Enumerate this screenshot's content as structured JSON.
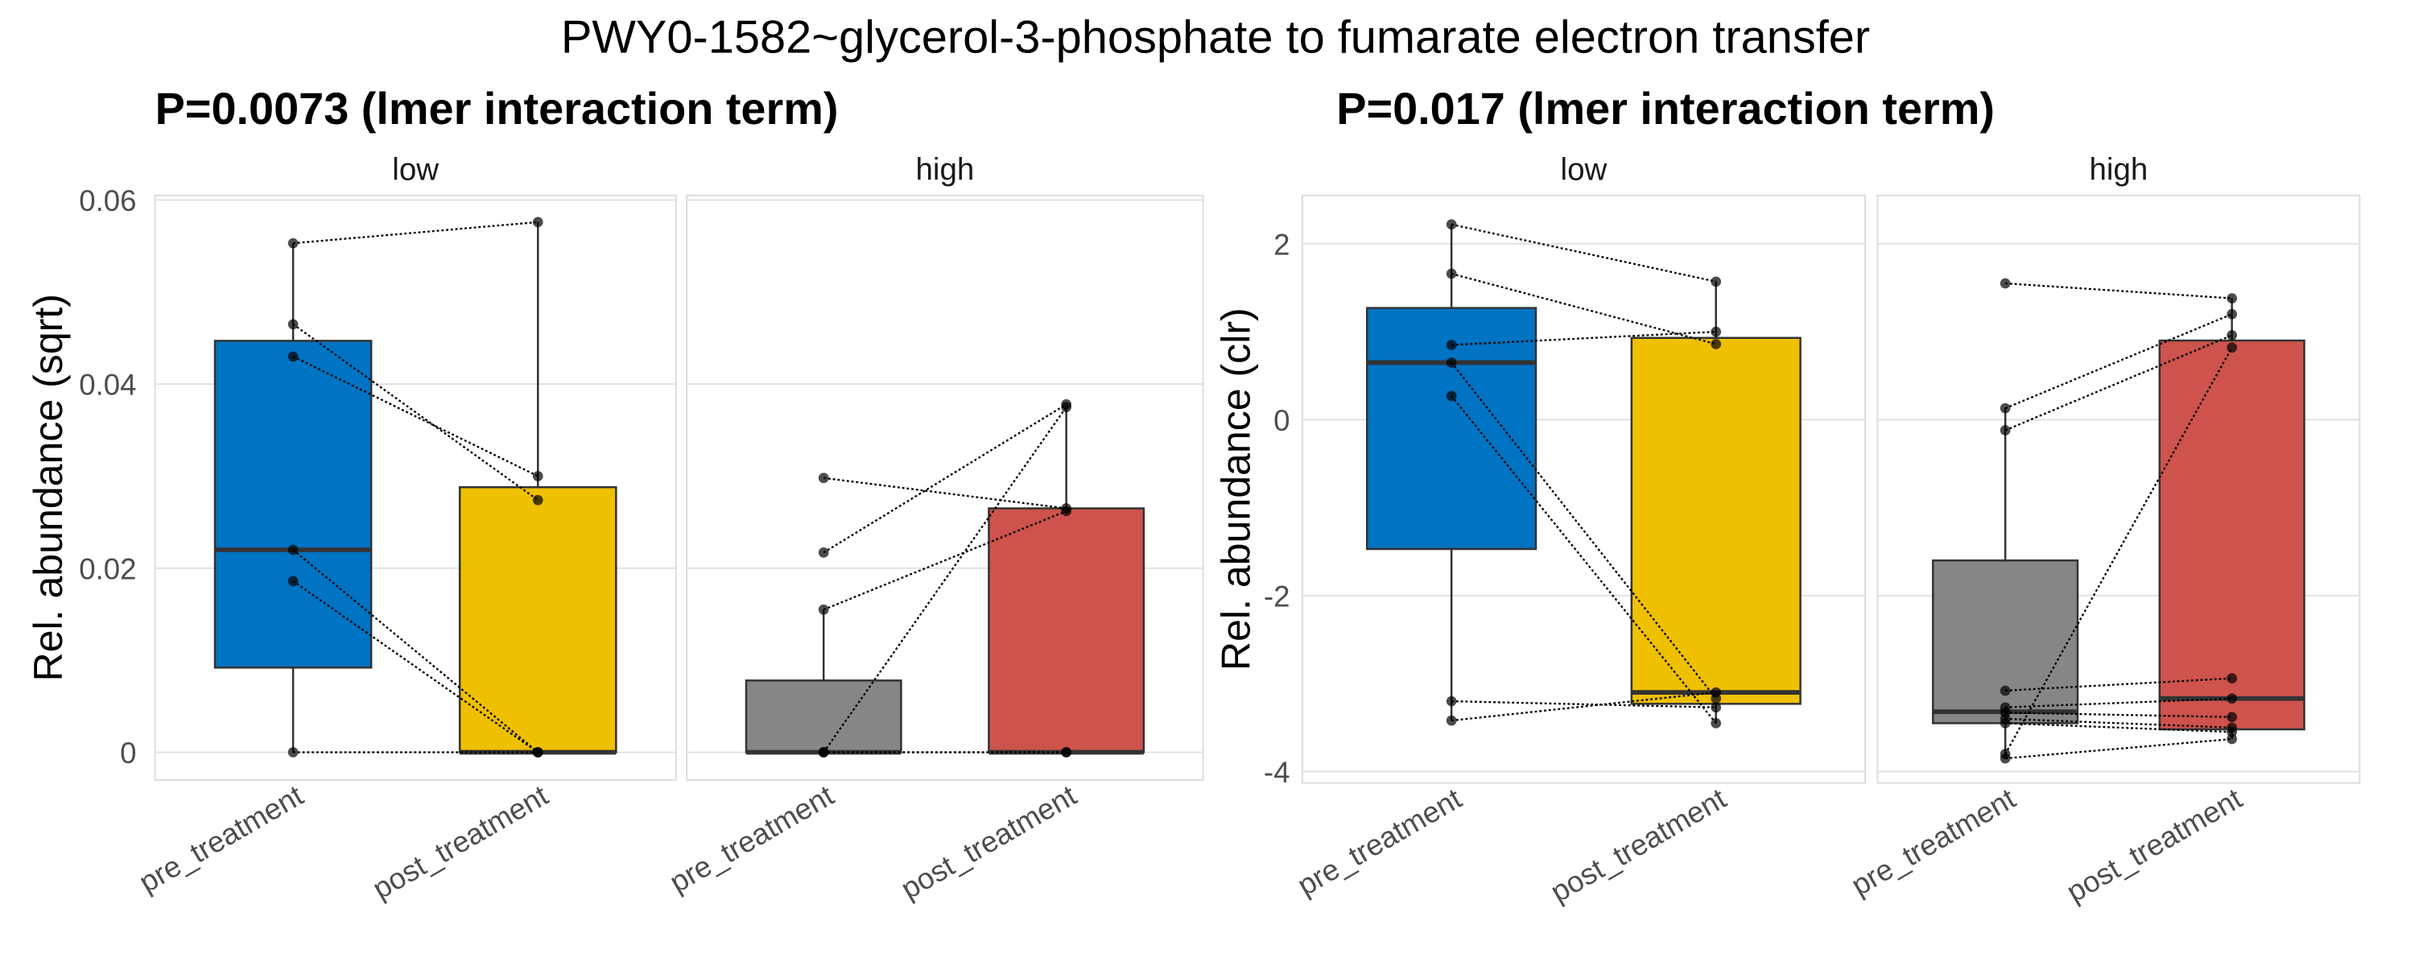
{
  "title": "PWY0-1582~glycerol-3-phosphate to fumarate electron transfer",
  "colors": {
    "pre_low": "#0073C2",
    "post_low": "#EFC000",
    "pre_high": "#868686",
    "post_high": "#CD534C"
  },
  "chart_data": [
    {
      "type": "box",
      "subtitle": "P=0.0073 (lmer interaction term)",
      "ylabel": "Rel. abundance (sqrt)",
      "ylim": [
        -0.003,
        0.0605
      ],
      "yticks": [
        0,
        0.02,
        0.04,
        0.06
      ],
      "ytick_labels": [
        "0",
        "0.02",
        "0.04",
        "0.06"
      ],
      "categories": [
        "pre_treatment",
        "post_treatment"
      ],
      "grid": true,
      "panels": [
        {
          "label": "low",
          "boxes": [
            {
              "color_key": "pre_low",
              "whisker_low": 0,
              "q1": 0.0092,
              "median": 0.022,
              "q3": 0.0447,
              "whisker_high": 0.0553
            },
            {
              "color_key": "post_low",
              "whisker_low": 0,
              "q1": 0,
              "median": 0,
              "q3": 0.0288,
              "whisker_high": 0.0576
            }
          ],
          "pairs": [
            [
              0.0553,
              0.0576
            ],
            [
              0.0465,
              0.0274
            ],
            [
              0.043,
              0.03
            ],
            [
              0.022,
              0
            ],
            [
              0.0186,
              0
            ],
            [
              0,
              0
            ]
          ]
        },
        {
          "label": "high",
          "boxes": [
            {
              "color_key": "pre_high",
              "whisker_low": 0,
              "q1": 0,
              "median": 0,
              "q3": 0.0078,
              "whisker_high": 0.0155
            },
            {
              "color_key": "post_high",
              "whisker_low": 0,
              "q1": 0,
              "median": 0,
              "q3": 0.0265,
              "whisker_high": 0.0378
            }
          ],
          "pairs": [
            [
              0.0298,
              0.0265
            ],
            [
              0.0217,
              0.0378
            ],
            [
              0.0155,
              0.0262
            ],
            [
              0,
              0.0375
            ],
            [
              0,
              0
            ],
            [
              0,
              0
            ]
          ]
        }
      ]
    },
    {
      "type": "box",
      "subtitle": "P=0.017 (lmer interaction term)",
      "ylabel": "Rel. abundance (clr)",
      "ylim": [
        -4.13,
        2.55
      ],
      "yticks": [
        -4,
        -2,
        0,
        2
      ],
      "ytick_labels": [
        "-4",
        "-2",
        "0",
        "2"
      ],
      "categories": [
        "pre_treatment",
        "post_treatment"
      ],
      "grid": true,
      "panels": [
        {
          "label": "low",
          "boxes": [
            {
              "color_key": "pre_low",
              "whisker_low": -3.42,
              "q1": -1.47,
              "median": 0.65,
              "q3": 1.27,
              "whisker_high": 2.22
            },
            {
              "color_key": "post_low",
              "whisker_low": -3.45,
              "q1": -3.23,
              "median": -3.1,
              "q3": 0.93,
              "whisker_high": 1.57
            }
          ],
          "pairs": [
            [
              2.22,
              1.57
            ],
            [
              1.66,
              0.86
            ],
            [
              0.85,
              1.0
            ],
            [
              0.65,
              -3.17
            ],
            [
              0.27,
              -3.45
            ],
            [
              -3.2,
              -3.27
            ],
            [
              -3.42,
              -3.1
            ]
          ]
        },
        {
          "label": "high",
          "boxes": [
            {
              "color_key": "pre_high",
              "whisker_low": -3.85,
              "q1": -3.45,
              "median": -3.32,
              "q3": -1.6,
              "whisker_high": 0.13
            },
            {
              "color_key": "post_high",
              "whisker_low": -3.63,
              "q1": -3.52,
              "median": -3.17,
              "q3": 0.9,
              "whisker_high": 1.38
            }
          ],
          "pairs": [
            [
              1.55,
              1.38
            ],
            [
              0.13,
              1.2
            ],
            [
              -0.12,
              0.96
            ],
            [
              -3.8,
              0.82
            ],
            [
              -3.08,
              -2.94
            ],
            [
              -3.27,
              -3.17
            ],
            [
              -3.33,
              -3.38
            ],
            [
              -3.4,
              -3.5
            ],
            [
              -3.45,
              -3.55
            ],
            [
              -3.85,
              -3.63
            ]
          ]
        }
      ]
    }
  ]
}
